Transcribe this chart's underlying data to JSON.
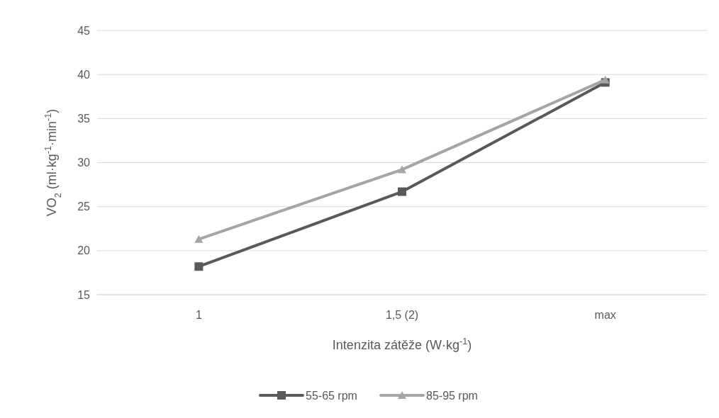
{
  "chart_data": {
    "type": "line",
    "xlabel": "Intenzita zátěže (W·kg$^{-1}$)",
    "ylabel": "VO$_{2}$ (ml·kg$^{-1}$·min$^{-1}$)",
    "categories": [
      "1",
      "1,5 (2)",
      "max"
    ],
    "ylim": [
      15,
      45
    ],
    "yticks": [
      15,
      20,
      25,
      30,
      35,
      40,
      45
    ],
    "grid": "y",
    "legend": "bottom",
    "series": [
      {
        "name": "55-65 rpm",
        "color": "#595959",
        "marker": "square",
        "values": [
          18.2,
          26.7,
          39.1
        ]
      },
      {
        "name": "85-95 rpm",
        "color": "#a5a5a5",
        "marker": "triangle",
        "values": [
          21.3,
          29.2,
          39.4
        ]
      }
    ]
  }
}
